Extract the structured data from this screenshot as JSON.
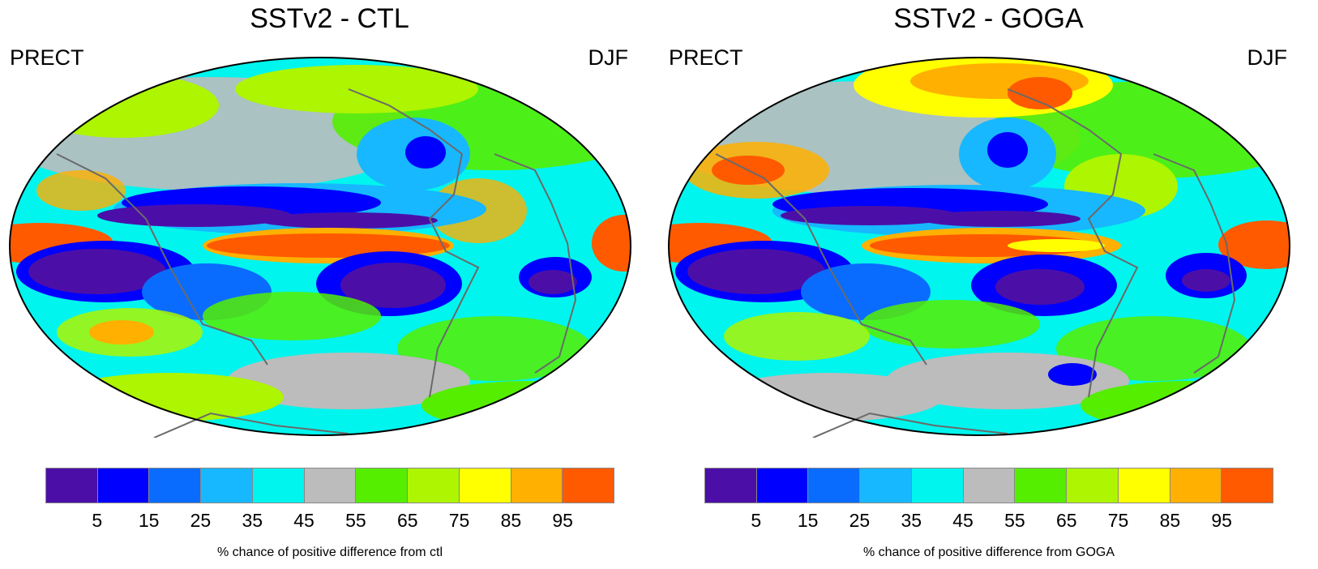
{
  "panels": [
    {
      "title": "SSTv2 - CTL",
      "variable": "PRECT",
      "season": "DJF",
      "colorbar_title": "% chance of positive difference from ctl"
    },
    {
      "title": "SSTv2 - GOGA",
      "variable": "PRECT",
      "season": "DJF",
      "colorbar_title": "% chance of positive difference from GOGA"
    }
  ],
  "colorbar": {
    "colors": [
      "#4b0fa8",
      "#0000ff",
      "#0a6cff",
      "#17b8ff",
      "#00f5ee",
      "#bcbcbc",
      "#55ee00",
      "#adf500",
      "#ffff00",
      "#ffb000",
      "#ff5a00"
    ],
    "tick_labels": [
      "5",
      "15",
      "25",
      "35",
      "45",
      "55",
      "65",
      "75",
      "85",
      "95"
    ]
  }
}
